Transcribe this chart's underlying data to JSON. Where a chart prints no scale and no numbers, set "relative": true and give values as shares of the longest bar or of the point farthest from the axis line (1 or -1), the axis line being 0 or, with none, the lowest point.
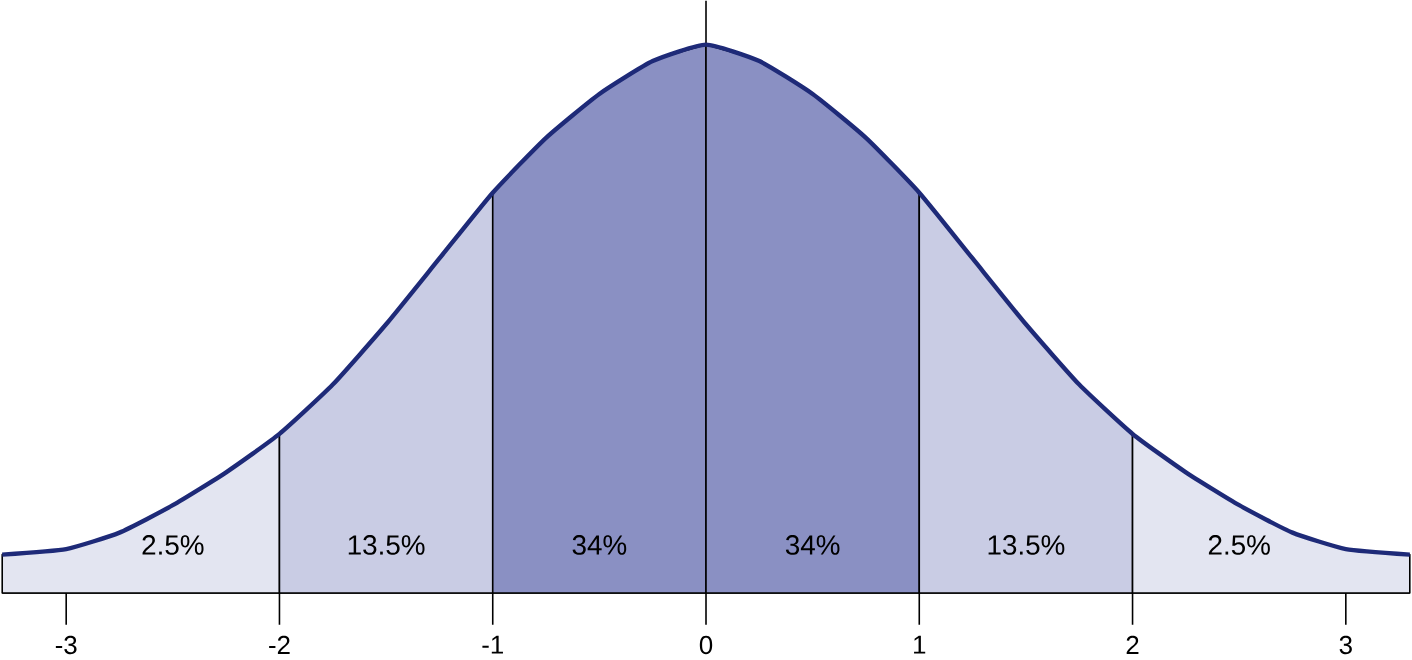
{
  "chart_data": {
    "type": "area",
    "relative": true,
    "xlim": [
      -3.3,
      3.3
    ],
    "xticks": [
      -3,
      -2,
      -1,
      0,
      1,
      2,
      3
    ],
    "series": [
      {
        "color": "#e3e5f1",
        "x": [
          -3.3,
          -3,
          -2.75,
          -2.5,
          -2.25,
          -2
        ],
        "values": [
          0.07,
          0.08,
          0.11,
          0.16,
          0.22,
          0.29
        ]
      },
      {
        "color": "#c9cce4",
        "x": [
          -2,
          -1.75,
          -1.5,
          -1.25,
          -1
        ],
        "values": [
          0.29,
          0.38,
          0.49,
          0.61,
          0.73
        ]
      },
      {
        "color": "#8a90c3",
        "x": [
          -1,
          -0.75,
          -0.5,
          -0.25,
          0
        ],
        "values": [
          0.73,
          0.83,
          0.91,
          0.97,
          1
        ]
      },
      {
        "color": "#8a90c3",
        "x": [
          0,
          0.25,
          0.5,
          0.75,
          1
        ],
        "values": [
          1,
          0.97,
          0.91,
          0.83,
          0.73
        ]
      },
      {
        "color": "#c9cce4",
        "x": [
          1,
          1.25,
          1.5,
          1.75,
          2
        ],
        "values": [
          0.73,
          0.61,
          0.49,
          0.38,
          0.29
        ]
      },
      {
        "color": "#e3e5f1",
        "x": [
          2,
          2.25,
          2.5,
          2.75,
          3,
          3.3
        ],
        "values": [
          0.29,
          0.22,
          0.16,
          0.11,
          0.08,
          0.07
        ]
      },
      {
        "type": "line",
        "color": "#1e2a78",
        "x": [
          -3.3,
          -3,
          -2.75,
          -2.5,
          -2.25,
          -2,
          -1.75,
          -1.5,
          -1.25,
          -1,
          -0.75,
          -0.5,
          -0.25,
          0,
          0.25,
          0.5,
          0.75,
          1,
          1.25,
          1.5,
          1.75,
          2,
          2.25,
          2.5,
          2.75,
          3,
          3.3
        ],
        "values": [
          0.07,
          0.08,
          0.11,
          0.16,
          0.22,
          0.29,
          0.38,
          0.49,
          0.61,
          0.73,
          0.83,
          0.91,
          0.97,
          1,
          0.97,
          0.91,
          0.83,
          0.73,
          0.61,
          0.49,
          0.38,
          0.29,
          0.22,
          0.16,
          0.11,
          0.08,
          0.07
        ]
      }
    ],
    "annotations": [
      "2.5%",
      "13.5%",
      "34%",
      "34%",
      "13.5%",
      "2.5%"
    ]
  }
}
